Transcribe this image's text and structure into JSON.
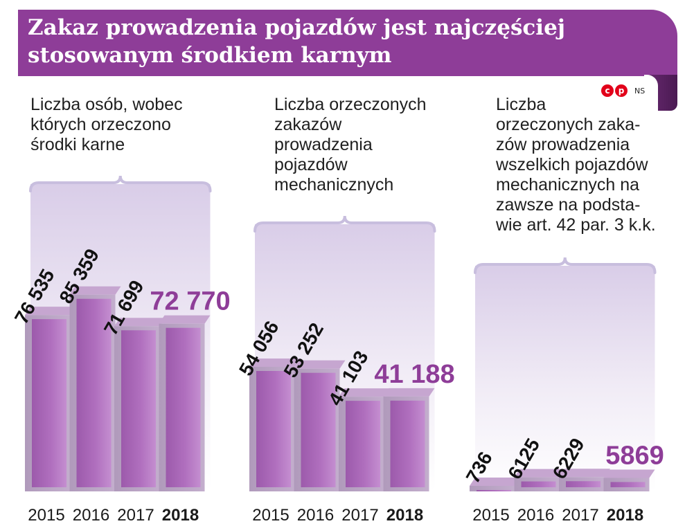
{
  "header": {
    "title_line1": "Zakaz prowadzenia pojazdów jest najczęściej",
    "title_line2": "stosowanym środkiem karnym",
    "credit": "NS"
  },
  "colors": {
    "banner": "#8e3d98",
    "bar_front": "#a866b4",
    "bar_side": "#b8a0c0",
    "highlight_label": "#8e3d98",
    "brace": "#c8bede"
  },
  "chart_data": [
    {
      "type": "bar",
      "title_lines": [
        "Liczba osób, wobec",
        "których orzeczono",
        "środki karne"
      ],
      "categories": [
        "2015",
        "2016",
        "2017",
        "2018"
      ],
      "values": [
        76535,
        85359,
        71699,
        72770
      ],
      "value_labels": [
        "76 535",
        "85 359",
        "71 699",
        "72 770"
      ],
      "highlight": "2018"
    },
    {
      "type": "bar",
      "title_lines": [
        "Liczba orzeczonych",
        "zakazów",
        "prowadzenia",
        "pojazdów",
        "mechanicznych"
      ],
      "categories": [
        "2015",
        "2016",
        "2017",
        "2018"
      ],
      "values": [
        54056,
        53252,
        41103,
        41188
      ],
      "value_labels": [
        "54 056",
        "53 252",
        "41 103",
        "41 188"
      ],
      "highlight": "2018"
    },
    {
      "type": "bar",
      "title_lines": [
        "Liczba",
        "orzeczonych zaka-",
        "zów prowadzenia",
        "wszelkich pojazdów",
        "mechanicznych na",
        "zawsze na podsta-",
        "wie art. 42 par. 3 k.k."
      ],
      "categories": [
        "2015",
        "2016",
        "2017",
        "2018"
      ],
      "values": [
        736,
        6125,
        6229,
        5869
      ],
      "value_labels": [
        "736",
        "6125",
        "6229",
        "5869"
      ],
      "highlight": "2018"
    }
  ]
}
